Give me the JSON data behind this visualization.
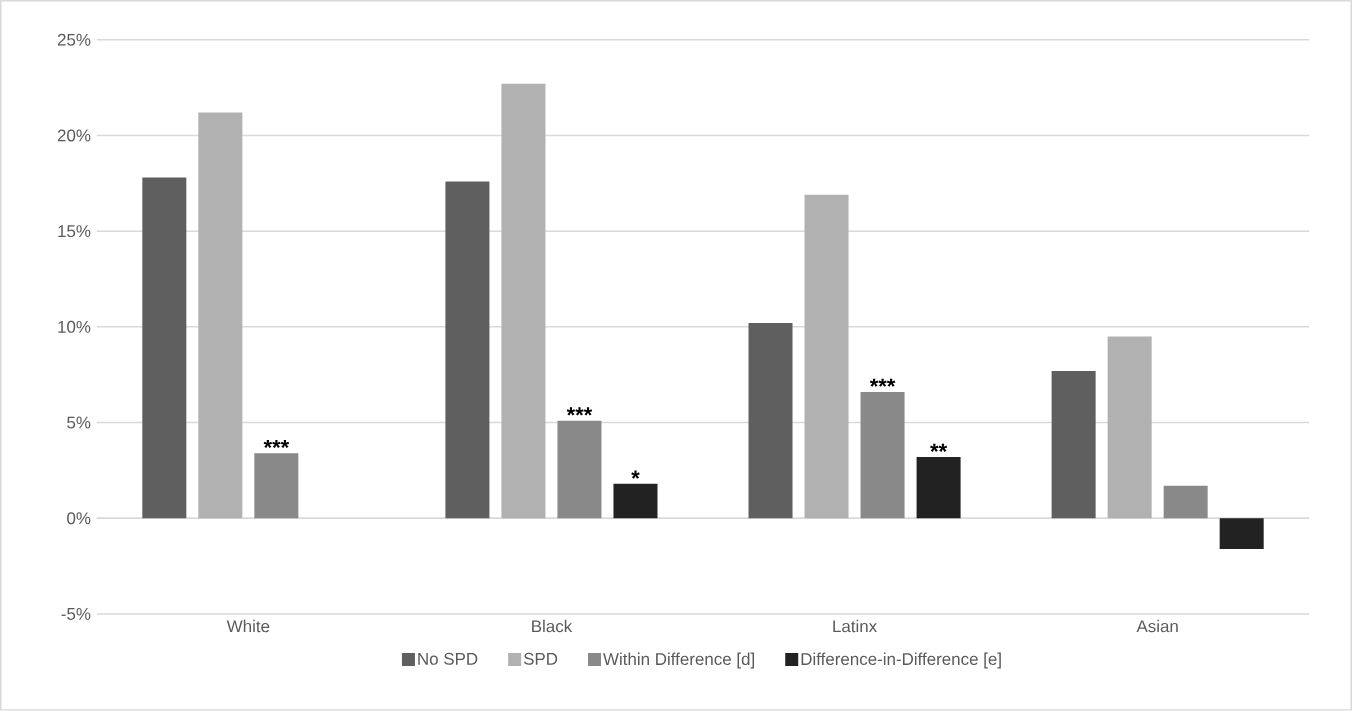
{
  "chart_data": {
    "type": "bar",
    "categories": [
      "White",
      "Black",
      "Latinx",
      "Asian"
    ],
    "series": [
      {
        "name": "No SPD",
        "color": "#5f5f5f",
        "values": [
          17.8,
          17.6,
          10.2,
          7.7
        ]
      },
      {
        "name": "SPD",
        "color": "#b1b1b1",
        "values": [
          21.2,
          22.7,
          16.9,
          9.5
        ]
      },
      {
        "name": "Within Difference [d]",
        "color": "#898989",
        "values": [
          3.4,
          5.1,
          6.6,
          1.7
        ],
        "value_labels": [
          "***",
          "***",
          "***",
          null
        ]
      },
      {
        "name": "Difference-in-Difference [e]",
        "color": "#222222",
        "values": [
          null,
          1.8,
          3.2,
          -1.6
        ],
        "value_labels": [
          null,
          "*",
          "**",
          null
        ]
      }
    ],
    "ylim": [
      -5,
      25
    ],
    "yticks": [
      {
        "value": -5,
        "label": "-5%"
      },
      {
        "value": 0,
        "label": "0%"
      },
      {
        "value": 5,
        "label": "5%"
      },
      {
        "value": 10,
        "label": "10%"
      },
      {
        "value": 15,
        "label": "15%"
      },
      {
        "value": 20,
        "label": "20%"
      },
      {
        "value": 25,
        "label": "25%"
      }
    ],
    "grid": "y",
    "legend": "bottom"
  }
}
